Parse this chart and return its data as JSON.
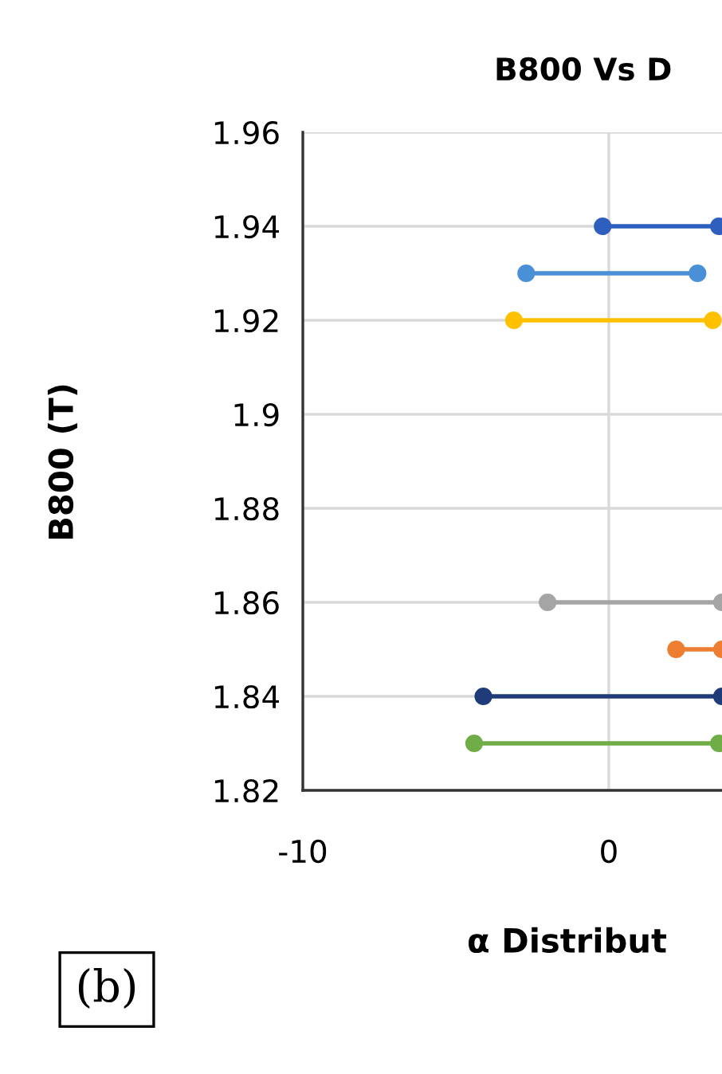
{
  "chart_data": {
    "type": "line",
    "title": "B800 Vs D",
    "xlabel": "α Distribut",
    "ylabel": "B800 (T)",
    "annotations": [
      "(b)"
    ],
    "xlim": [
      -10,
      3.7
    ],
    "xticks": [
      -10,
      0
    ],
    "ylim": [
      1.82,
      1.96
    ],
    "yticks": [
      1.82,
      1.84,
      1.86,
      1.88,
      {
        "value": 1.9,
        "label": "1.9"
      },
      1.92,
      1.94,
      1.96
    ],
    "grid": true,
    "legend": false,
    "marker": "circle",
    "line_style": "solid",
    "series": [
      {
        "color": "#2e5fbf",
        "x": [
          -0.2,
          3.6
        ],
        "values": [
          1.94,
          1.94
        ]
      },
      {
        "color": "#4a90d6",
        "x": [
          -2.7,
          2.9
        ],
        "values": [
          1.93,
          1.93
        ]
      },
      {
        "color": "#ffc000",
        "x": [
          -3.1,
          3.4
        ],
        "values": [
          1.92,
          1.92
        ]
      },
      {
        "color": "#a5a5a5",
        "x": [
          -2.0,
          3.7
        ],
        "values": [
          1.86,
          1.86
        ]
      },
      {
        "color": "#ed7d31",
        "x": [
          2.2,
          3.7
        ],
        "values": [
          1.85,
          1.85
        ]
      },
      {
        "color": "#1f3c78",
        "x": [
          -4.1,
          3.7
        ],
        "values": [
          1.84,
          1.84
        ]
      },
      {
        "color": "#70ad47",
        "x": [
          -4.4,
          3.6
        ],
        "values": [
          1.83,
          1.83
        ]
      }
    ]
  }
}
